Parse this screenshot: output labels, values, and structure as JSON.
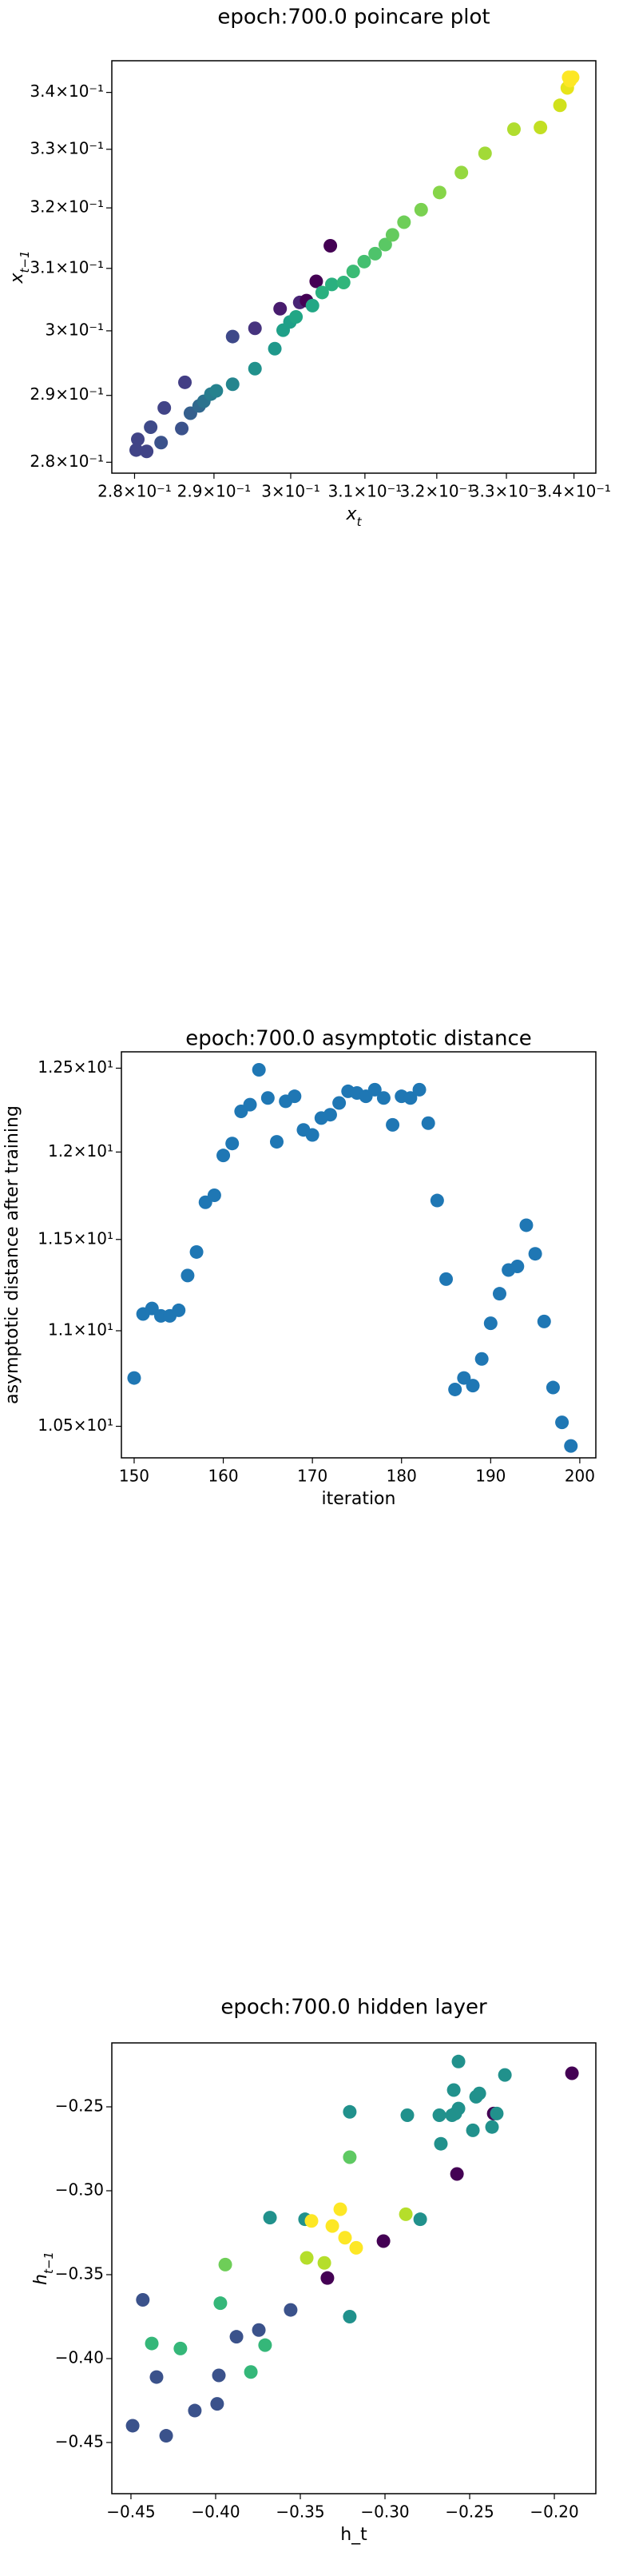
{
  "chart_data": [
    {
      "type": "scatter",
      "title": "epoch:700.0 poincare plot",
      "xlabel": {
        "text": "x",
        "subscript": "t"
      },
      "ylabel": {
        "text": "x",
        "subscript": "t−1"
      },
      "xscale": "log",
      "yscale": "log",
      "xlim": [
        0.2772,
        0.3433
      ],
      "ylim": [
        0.2784,
        0.3457
      ],
      "xticks": [
        {
          "value": 0.28,
          "label": "2.8×10⁻¹"
        },
        {
          "value": 0.29,
          "label": "2.9×10⁻¹"
        },
        {
          "value": 0.3,
          "label": "3×10⁻¹"
        },
        {
          "value": 0.31,
          "label": "3.1×10⁻¹"
        },
        {
          "value": 0.32,
          "label": "3.2×10⁻¹"
        },
        {
          "value": 0.33,
          "label": "3.3×10⁻¹"
        },
        {
          "value": 0.34,
          "label": "3.4×10⁻¹"
        }
      ],
      "yticks": [
        {
          "value": 0.28,
          "label": "2.8×10⁻¹"
        },
        {
          "value": 0.29,
          "label": "2.9×10⁻¹"
        },
        {
          "value": 0.3,
          "label": "3×10⁻¹"
        },
        {
          "value": 0.31,
          "label": "3.1×10⁻¹"
        },
        {
          "value": 0.32,
          "label": "3.2×10⁻¹"
        },
        {
          "value": 0.33,
          "label": "3.3×10⁻¹"
        },
        {
          "value": 0.34,
          "label": "3.4×10⁻¹"
        }
      ],
      "x": [
        0.2802,
        0.2815,
        0.2804,
        0.282,
        0.2833,
        0.2837,
        0.2859,
        0.2863,
        0.287,
        0.2881,
        0.2887,
        0.2896,
        0.2903,
        0.2924,
        0.2924,
        0.2953,
        0.2953,
        0.2979,
        0.2986,
        0.299,
        0.2999,
        0.3007,
        0.3012,
        0.3021,
        0.3034,
        0.3029,
        0.3042,
        0.3053,
        0.3055,
        0.3071,
        0.3084,
        0.3099,
        0.3114,
        0.3128,
        0.3138,
        0.3154,
        0.3178,
        0.3204,
        0.3235,
        0.3269,
        0.3311,
        0.335,
        0.3379,
        0.339,
        0.3394,
        0.3398,
        0.3392
      ],
      "values": [
        0.2818,
        0.2816,
        0.2834,
        0.2852,
        0.2829,
        0.2881,
        0.285,
        0.292,
        0.2873,
        0.2884,
        0.2891,
        0.2902,
        0.2907,
        0.2917,
        0.2991,
        0.2941,
        0.3004,
        0.2972,
        0.3035,
        0.3001,
        0.3014,
        0.3022,
        0.3045,
        0.3048,
        0.3079,
        0.304,
        0.3061,
        0.3137,
        0.3074,
        0.3077,
        0.3095,
        0.3111,
        0.3124,
        0.3139,
        0.3155,
        0.3176,
        0.3197,
        0.3226,
        0.326,
        0.3293,
        0.3335,
        0.3338,
        0.3377,
        0.3408,
        0.3421,
        0.3427,
        0.3427
      ],
      "colors": [
        "#414487",
        "#414487",
        "#414487",
        "#3e4a89",
        "#3b528b",
        "#414487",
        "#3b528b",
        "#433e85",
        "#355f8d",
        "#31688e",
        "#2c728e",
        "#287c8e",
        "#26828e",
        "#25858e",
        "#3e4989",
        "#21918c",
        "#46337e",
        "#1f988b",
        "#481c6e",
        "#1fa088",
        "#1fa088",
        "#21a685",
        "#482475",
        "#440154",
        "#440154",
        "#22a785",
        "#2ab07f",
        "#440154",
        "#2ab07f",
        "#31b57b",
        "#3bbb75",
        "#44bf70",
        "#4ec36b",
        "#5ac864",
        "#65cb5e",
        "#6ece58",
        "#7ad151",
        "#86d549",
        "#95d840",
        "#a2da37",
        "#b0dd2f",
        "#c2df23",
        "#d0e11c",
        "#e7e419",
        "#fde725",
        "#fde725",
        "#fde725"
      ]
    },
    {
      "type": "scatter",
      "title": "epoch:700.0 asymptotic distance",
      "xlabel": "iteration",
      "ylabel": "asymptotic distance after training",
      "yscale": "log",
      "color": "#1f77b4",
      "xlim": [
        148.57,
        201.8
      ],
      "ylim": [
        10.34,
        12.6
      ],
      "xticks": [
        150,
        160,
        170,
        180,
        190,
        200
      ],
      "yticks": [
        {
          "value": 10.5,
          "label": "1.05×10¹"
        },
        {
          "value": 11,
          "label": "1.1×10¹"
        },
        {
          "value": 11.5,
          "label": "1.15×10¹"
        },
        {
          "value": 12,
          "label": "1.2×10¹"
        },
        {
          "value": 12.5,
          "label": "1.25×10¹"
        }
      ],
      "x": [
        150,
        151,
        152,
        153,
        154,
        155,
        156,
        157,
        158,
        159,
        160,
        161,
        162,
        163,
        164,
        165,
        166,
        167,
        168,
        169,
        170,
        171,
        172,
        173,
        174,
        175,
        176,
        177,
        178,
        179,
        180,
        181,
        182,
        183,
        184,
        185,
        186,
        187,
        188,
        189,
        190,
        191,
        192,
        193,
        194,
        195,
        196,
        197,
        198,
        199
      ],
      "values": [
        10.75,
        11.09,
        11.12,
        11.08,
        11.08,
        11.11,
        11.3,
        11.43,
        11.71,
        11.75,
        11.98,
        12.05,
        12.24,
        12.28,
        12.49,
        12.32,
        12.06,
        12.3,
        12.33,
        12.13,
        12.1,
        12.2,
        12.22,
        12.29,
        12.36,
        12.35,
        12.33,
        12.37,
        12.32,
        12.16,
        12.33,
        12.32,
        12.37,
        12.17,
        11.72,
        11.28,
        10.69,
        10.75,
        10.71,
        10.85,
        11.04,
        11.2,
        11.33,
        11.35,
        11.58,
        11.42,
        11.05,
        10.7,
        10.52,
        10.4
      ]
    },
    {
      "type": "scatter",
      "title": "epoch:700.0 hidden layer",
      "xlabel": "h_t",
      "ylabel": {
        "text": "h",
        "subscript": "t−1"
      },
      "xlim": [
        -0.4613,
        -0.1755
      ],
      "ylim": [
        -0.4805,
        -0.2119
      ],
      "xticks": [
        {
          "value": -0.45,
          "label": "−0.45"
        },
        {
          "value": -0.4,
          "label": "−0.40"
        },
        {
          "value": -0.35,
          "label": "−0.35"
        },
        {
          "value": -0.3,
          "label": "−0.30"
        },
        {
          "value": -0.25,
          "label": "−0.25"
        },
        {
          "value": -0.2,
          "label": "−0.20"
        }
      ],
      "yticks": [
        {
          "value": -0.45,
          "label": "−0.45"
        },
        {
          "value": -0.4,
          "label": "−0.40"
        },
        {
          "value": -0.35,
          "label": "−0.35"
        },
        {
          "value": -0.3,
          "label": "−0.30"
        },
        {
          "value": -0.25,
          "label": "−0.25"
        }
      ],
      "x": [
        -0.449,
        -0.443,
        -0.4377,
        -0.4349,
        -0.4292,
        -0.4208,
        -0.4123,
        -0.3991,
        -0.3981,
        -0.3972,
        -0.3943,
        -0.3877,
        -0.3792,
        -0.3745,
        -0.3708,
        -0.3679,
        -0.3557,
        -0.3472,
        -0.3462,
        -0.3434,
        -0.3358,
        -0.334,
        -0.3311,
        -0.3264,
        -0.3236,
        -0.3208,
        -0.3208,
        -0.3208,
        -0.317,
        -0.3009,
        -0.2877,
        -0.2868,
        -0.2792,
        -0.2679,
        -0.267,
        -0.2604,
        -0.2594,
        -0.2585,
        -0.2575,
        -0.2566,
        -0.2566,
        -0.2481,
        -0.2462,
        -0.2443,
        -0.2368,
        -0.2358,
        -0.234,
        -0.2292,
        -0.1896
      ],
      "values": [
        -0.44,
        -0.365,
        -0.391,
        -0.411,
        -0.446,
        -0.394,
        -0.431,
        -0.427,
        -0.41,
        -0.367,
        -0.344,
        -0.387,
        -0.408,
        -0.383,
        -0.392,
        -0.316,
        -0.371,
        -0.317,
        -0.34,
        -0.318,
        -0.343,
        -0.352,
        -0.321,
        -0.311,
        -0.328,
        -0.28,
        -0.253,
        -0.375,
        -0.334,
        -0.33,
        -0.314,
        -0.255,
        -0.317,
        -0.255,
        -0.272,
        -0.255,
        -0.24,
        -0.254,
        -0.29,
        -0.223,
        -0.251,
        -0.264,
        -0.244,
        -0.242,
        -0.262,
        -0.254,
        -0.254,
        -0.231,
        -0.23
      ],
      "colors": [
        "#3b528b",
        "#3b528b",
        "#35b779",
        "#3b528b",
        "#3b528b",
        "#35b779",
        "#3b528b",
        "#3b528b",
        "#3b528b",
        "#35b779",
        "#6ece58",
        "#3b528b",
        "#35b779",
        "#3b528b",
        "#35b779",
        "#21918c",
        "#3b528b",
        "#21918c",
        "#b5de2b",
        "#fde725",
        "#b5de2b",
        "#440154",
        "#fde725",
        "#fde725",
        "#fde725",
        "#5ec962",
        "#21918c",
        "#21918c",
        "#fde725",
        "#440154",
        "#b5de2b",
        "#21918c",
        "#21918c",
        "#21918c",
        "#21918c",
        "#21918c",
        "#21918c",
        "#21918c",
        "#440154",
        "#21918c",
        "#21918c",
        "#21918c",
        "#21918c",
        "#21918c",
        "#21918c",
        "#440154",
        "#21918c",
        "#21918c",
        "#440154"
      ]
    }
  ]
}
